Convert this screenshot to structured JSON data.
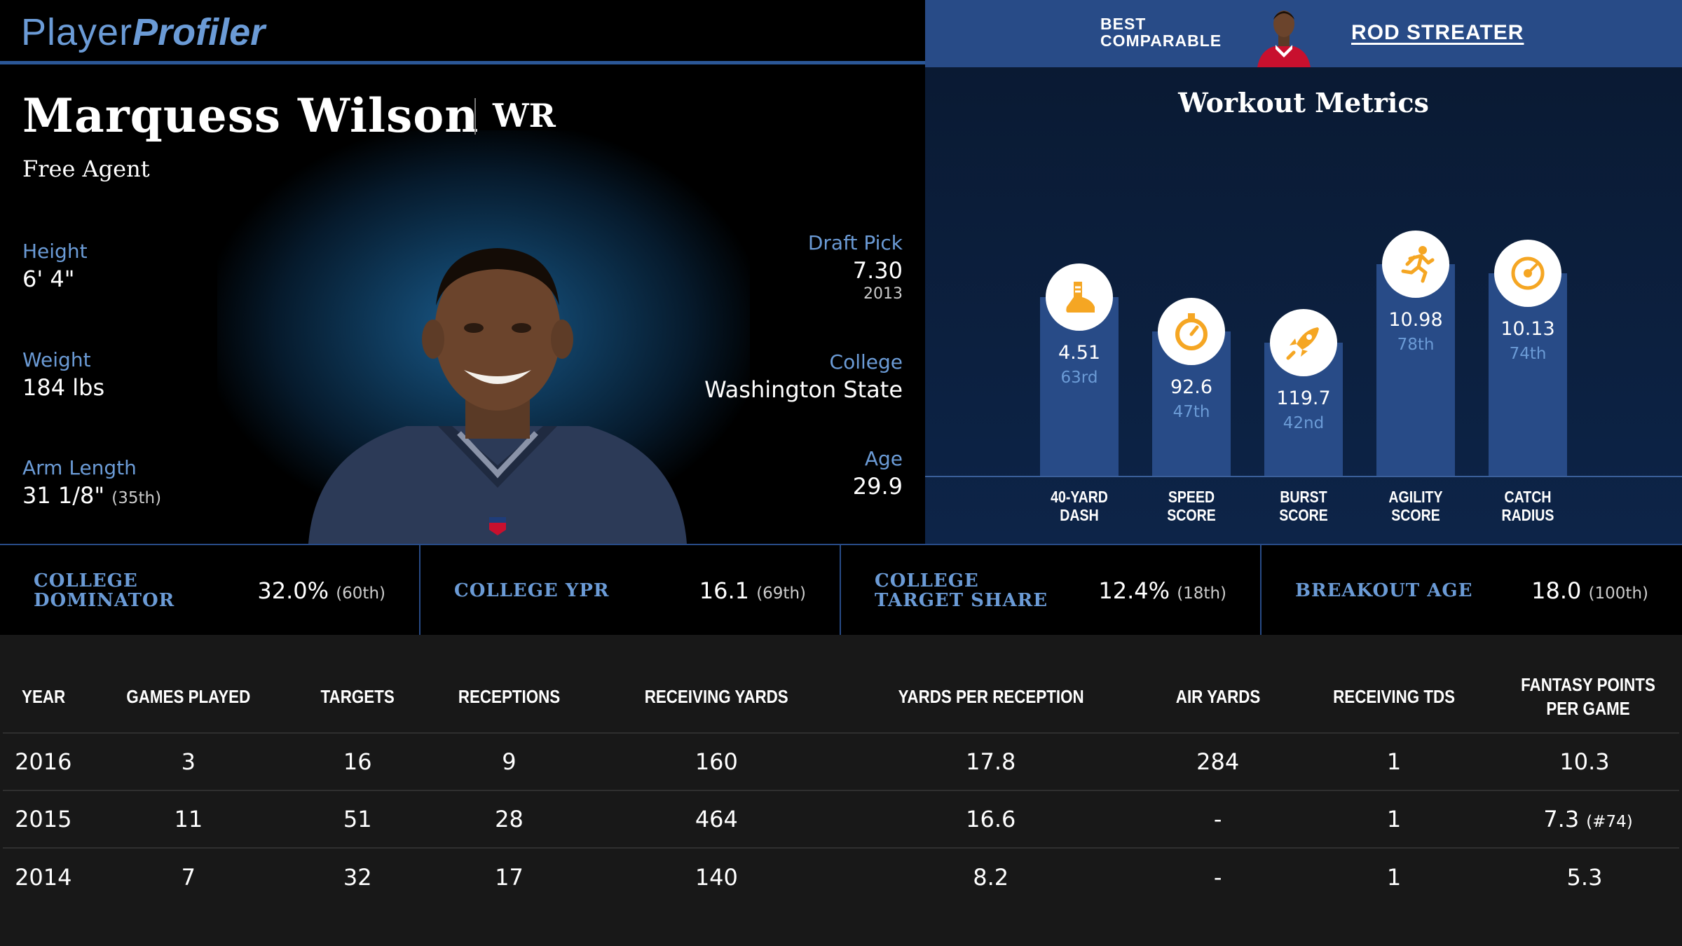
{
  "header": {
    "logo_part1": "Player",
    "logo_part2": "Profiler",
    "best_comparable_label": "BEST COMPARABLE",
    "best_comparable_name": "ROD STREATER"
  },
  "player": {
    "name": "Marquess Wilson",
    "position": "WR",
    "team": "Free Agent",
    "height_label": "Height",
    "height": "6' 4\"",
    "weight_label": "Weight",
    "weight": "184 lbs",
    "arm_label": "Arm Length",
    "arm": "31 1/8\"",
    "arm_pct": "(35th)",
    "draft_label": "Draft Pick",
    "draft_pick": "7.30",
    "draft_year": "2013",
    "college_label": "College",
    "college": "Washington State",
    "age_label": "Age",
    "age": "29.9"
  },
  "workout": {
    "title": "Workout Metrics",
    "metrics": [
      {
        "label1": "40-YARD",
        "label2": "DASH",
        "value": "4.51",
        "percentile": "63rd",
        "pct_num": 63,
        "icon": "shoe-icon"
      },
      {
        "label1": "SPEED",
        "label2": "SCORE",
        "value": "92.6",
        "percentile": "47th",
        "pct_num": 47,
        "icon": "stopwatch-icon"
      },
      {
        "label1": "BURST",
        "label2": "SCORE",
        "value": "119.7",
        "percentile": "42nd",
        "pct_num": 42,
        "icon": "rocket-icon"
      },
      {
        "label1": "AGILITY",
        "label2": "SCORE",
        "value": "10.98",
        "percentile": "78th",
        "pct_num": 78,
        "icon": "runner-icon"
      },
      {
        "label1": "CATCH",
        "label2": "RADIUS",
        "value": "10.13",
        "percentile": "74th",
        "pct_num": 74,
        "icon": "target-icon"
      }
    ],
    "accent": "#f5a623"
  },
  "college_stats": [
    {
      "label": "COLLEGE DOMINATOR",
      "value": "32.0%",
      "pct": "(60th)"
    },
    {
      "label": "COLLEGE YPR",
      "value": "16.1",
      "pct": "(69th)"
    },
    {
      "label": "COLLEGE TARGET SHARE",
      "value": "12.4%",
      "pct": "(18th)"
    },
    {
      "label": "BREAKOUT AGE",
      "value": "18.0",
      "pct": "(100th)"
    }
  ],
  "table": {
    "headers": [
      "YEAR",
      "GAMES PLAYED",
      "TARGETS",
      "RECEPTIONS",
      "RECEIVING YARDS",
      "YARDS PER RECEPTION",
      "AIR YARDS",
      "RECEIVING TDS",
      "FANTASY POINTS PER GAME"
    ],
    "rows": [
      {
        "cells": [
          "2016",
          "3",
          "16",
          "9",
          "160",
          "17.8",
          "284",
          "1",
          "10.3"
        ],
        "rank": ""
      },
      {
        "cells": [
          "2015",
          "11",
          "51",
          "28",
          "464",
          "16.6",
          "-",
          "1",
          "7.3"
        ],
        "rank": "(#74)"
      },
      {
        "cells": [
          "2014",
          "7",
          "32",
          "17",
          "140",
          "8.2",
          "-",
          "1",
          "5.3"
        ],
        "rank": ""
      }
    ]
  },
  "colors": {
    "brand_blue": "#284b87",
    "label_blue": "#6b9bd6"
  }
}
